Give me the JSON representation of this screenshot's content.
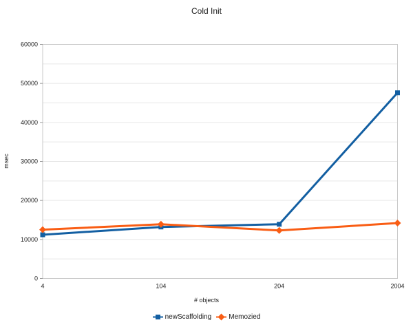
{
  "chart_data": {
    "type": "line",
    "title": "Cold Init",
    "xlabel": "# objects",
    "ylabel": "msec",
    "categories": [
      "4",
      "104",
      "204",
      "2004"
    ],
    "series": [
      {
        "name": "newScaffolding",
        "color": "#135fa2",
        "marker": "square",
        "values": [
          11200,
          13200,
          13900,
          47600
        ]
      },
      {
        "name": "Memozied",
        "color": "#f95d14",
        "marker": "diamond",
        "values": [
          12500,
          13900,
          12300,
          14200
        ]
      }
    ],
    "ylim": [
      0,
      60000
    ],
    "ytick_step": 10000,
    "grid_step": 5000,
    "grid": true,
    "legend_position": "bottom",
    "colors": {
      "gridline": "#e6e6e6",
      "plot_border": "#c9c9c9",
      "tick": "#9a9a9a",
      "tick_label": "#222222"
    }
  }
}
